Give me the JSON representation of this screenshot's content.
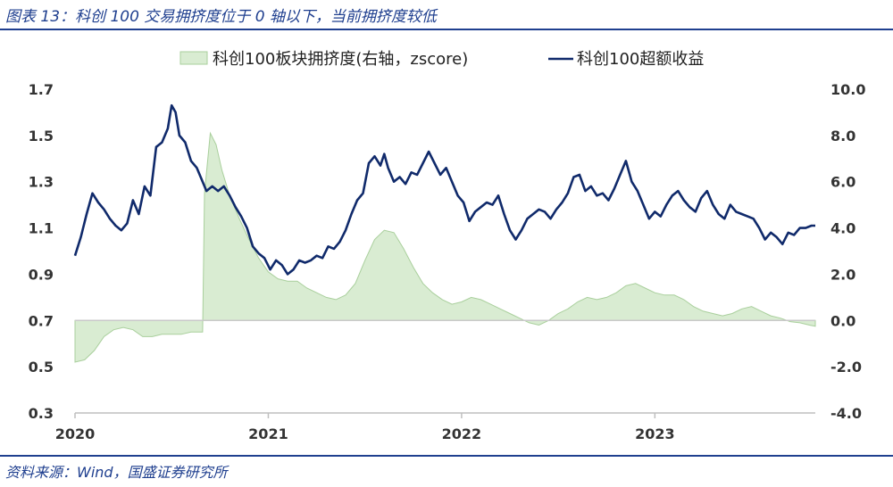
{
  "title": "图表 13：科创 100 交易拥挤度位于 0 轴以下，当前拥挤度较低",
  "source": "资料来源：Wind，国盛证券研究所",
  "colors": {
    "line": "#102a6b",
    "area_fill": "#d9ecd2",
    "area_stroke": "#a9cf9c",
    "title": "#1f3f8f",
    "baseline": "#c9c9c9"
  },
  "chart_data": {
    "type": "line",
    "legend": [
      {
        "label": "科创100板块拥挤度(右轴，zscore)",
        "kind": "area"
      },
      {
        "label": "科创100超额收益",
        "kind": "line"
      }
    ],
    "x_ticks": [
      {
        "label": "2020",
        "t": 2020.0
      },
      {
        "label": "2021",
        "t": 2021.0
      },
      {
        "label": "2022",
        "t": 2022.0
      },
      {
        "label": "2023",
        "t": 2023.0
      }
    ],
    "y_left": {
      "ticks": [
        "1.7",
        "1.5",
        "1.3",
        "1.1",
        "0.9",
        "0.7",
        "0.5",
        "0.3"
      ],
      "range": [
        0.3,
        1.7
      ]
    },
    "y_right": {
      "ticks": [
        "10.0",
        "8.0",
        "6.0",
        "4.0",
        "2.0",
        "0.0",
        "-2.0",
        "-4.0"
      ],
      "range": [
        -4.0,
        10.0
      ]
    },
    "x_range": [
      2020.0,
      2023.83
    ],
    "series": [
      {
        "name": "科创100超额收益",
        "axis": "left",
        "points": [
          [
            2020.0,
            0.98
          ],
          [
            2020.03,
            1.06
          ],
          [
            2020.06,
            1.16
          ],
          [
            2020.09,
            1.25
          ],
          [
            2020.12,
            1.21
          ],
          [
            2020.15,
            1.18
          ],
          [
            2020.18,
            1.14
          ],
          [
            2020.21,
            1.11
          ],
          [
            2020.24,
            1.09
          ],
          [
            2020.27,
            1.12
          ],
          [
            2020.3,
            1.22
          ],
          [
            2020.33,
            1.16
          ],
          [
            2020.36,
            1.28
          ],
          [
            2020.39,
            1.24
          ],
          [
            2020.42,
            1.45
          ],
          [
            2020.45,
            1.47
          ],
          [
            2020.48,
            1.53
          ],
          [
            2020.5,
            1.63
          ],
          [
            2020.52,
            1.6
          ],
          [
            2020.54,
            1.5
          ],
          [
            2020.57,
            1.47
          ],
          [
            2020.6,
            1.39
          ],
          [
            2020.63,
            1.36
          ],
          [
            2020.65,
            1.32
          ],
          [
            2020.68,
            1.26
          ],
          [
            2020.71,
            1.28
          ],
          [
            2020.74,
            1.26
          ],
          [
            2020.77,
            1.28
          ],
          [
            2020.8,
            1.24
          ],
          [
            2020.83,
            1.19
          ],
          [
            2020.86,
            1.15
          ],
          [
            2020.89,
            1.1
          ],
          [
            2020.92,
            1.02
          ],
          [
            2020.95,
            0.99
          ],
          [
            2020.98,
            0.97
          ],
          [
            2021.01,
            0.92
          ],
          [
            2021.04,
            0.96
          ],
          [
            2021.07,
            0.94
          ],
          [
            2021.1,
            0.9
          ],
          [
            2021.13,
            0.92
          ],
          [
            2021.16,
            0.96
          ],
          [
            2021.19,
            0.95
          ],
          [
            2021.22,
            0.96
          ],
          [
            2021.25,
            0.98
          ],
          [
            2021.28,
            0.97
          ],
          [
            2021.31,
            1.02
          ],
          [
            2021.34,
            1.01
          ],
          [
            2021.37,
            1.04
          ],
          [
            2021.4,
            1.09
          ],
          [
            2021.43,
            1.16
          ],
          [
            2021.46,
            1.22
          ],
          [
            2021.49,
            1.25
          ],
          [
            2021.52,
            1.38
          ],
          [
            2021.55,
            1.41
          ],
          [
            2021.58,
            1.37
          ],
          [
            2021.6,
            1.42
          ],
          [
            2021.62,
            1.36
          ],
          [
            2021.65,
            1.3
          ],
          [
            2021.68,
            1.32
          ],
          [
            2021.71,
            1.29
          ],
          [
            2021.74,
            1.34
          ],
          [
            2021.77,
            1.33
          ],
          [
            2021.8,
            1.38
          ],
          [
            2021.83,
            1.43
          ],
          [
            2021.86,
            1.38
          ],
          [
            2021.89,
            1.33
          ],
          [
            2021.92,
            1.36
          ],
          [
            2021.95,
            1.3
          ],
          [
            2021.98,
            1.24
          ],
          [
            2022.01,
            1.21
          ],
          [
            2022.04,
            1.13
          ],
          [
            2022.07,
            1.17
          ],
          [
            2022.1,
            1.19
          ],
          [
            2022.13,
            1.21
          ],
          [
            2022.16,
            1.2
          ],
          [
            2022.19,
            1.24
          ],
          [
            2022.22,
            1.16
          ],
          [
            2022.25,
            1.09
          ],
          [
            2022.28,
            1.05
          ],
          [
            2022.31,
            1.09
          ],
          [
            2022.34,
            1.14
          ],
          [
            2022.37,
            1.16
          ],
          [
            2022.4,
            1.18
          ],
          [
            2022.43,
            1.17
          ],
          [
            2022.46,
            1.14
          ],
          [
            2022.49,
            1.18
          ],
          [
            2022.52,
            1.21
          ],
          [
            2022.55,
            1.25
          ],
          [
            2022.58,
            1.32
          ],
          [
            2022.61,
            1.33
          ],
          [
            2022.64,
            1.26
          ],
          [
            2022.67,
            1.28
          ],
          [
            2022.7,
            1.24
          ],
          [
            2022.73,
            1.25
          ],
          [
            2022.76,
            1.22
          ],
          [
            2022.79,
            1.27
          ],
          [
            2022.82,
            1.33
          ],
          [
            2022.85,
            1.39
          ],
          [
            2022.88,
            1.3
          ],
          [
            2022.91,
            1.26
          ],
          [
            2022.94,
            1.2
          ],
          [
            2022.97,
            1.14
          ],
          [
            2023.0,
            1.17
          ],
          [
            2023.03,
            1.15
          ],
          [
            2023.06,
            1.2
          ],
          [
            2023.09,
            1.24
          ],
          [
            2023.12,
            1.26
          ],
          [
            2023.15,
            1.22
          ],
          [
            2023.18,
            1.19
          ],
          [
            2023.21,
            1.17
          ],
          [
            2023.24,
            1.23
          ],
          [
            2023.27,
            1.26
          ],
          [
            2023.3,
            1.2
          ],
          [
            2023.33,
            1.16
          ],
          [
            2023.36,
            1.14
          ],
          [
            2023.39,
            1.2
          ],
          [
            2023.42,
            1.17
          ],
          [
            2023.45,
            1.16
          ],
          [
            2023.48,
            1.15
          ],
          [
            2023.51,
            1.14
          ],
          [
            2023.54,
            1.1
          ],
          [
            2023.57,
            1.05
          ],
          [
            2023.6,
            1.08
          ],
          [
            2023.63,
            1.06
          ],
          [
            2023.66,
            1.03
          ],
          [
            2023.69,
            1.08
          ],
          [
            2023.72,
            1.07
          ],
          [
            2023.75,
            1.1
          ],
          [
            2023.78,
            1.1
          ],
          [
            2023.81,
            1.11
          ],
          [
            2023.83,
            1.11
          ]
        ]
      },
      {
        "name": "科创100板块拥挤度(右轴，zscore)",
        "axis": "right",
        "points": [
          [
            2020.0,
            -1.8
          ],
          [
            2020.05,
            -1.7
          ],
          [
            2020.1,
            -1.3
          ],
          [
            2020.15,
            -0.7
          ],
          [
            2020.2,
            -0.4
          ],
          [
            2020.25,
            -0.3
          ],
          [
            2020.3,
            -0.4
          ],
          [
            2020.35,
            -0.7
          ],
          [
            2020.4,
            -0.7
          ],
          [
            2020.45,
            -0.6
          ],
          [
            2020.5,
            -0.6
          ],
          [
            2020.55,
            -0.6
          ],
          [
            2020.6,
            -0.5
          ],
          [
            2020.66,
            -0.5
          ],
          [
            2020.67,
            5.5
          ],
          [
            2020.7,
            8.1
          ],
          [
            2020.73,
            7.6
          ],
          [
            2020.76,
            6.5
          ],
          [
            2020.8,
            5.4
          ],
          [
            2020.85,
            4.4
          ],
          [
            2020.9,
            3.5
          ],
          [
            2020.95,
            2.7
          ],
          [
            2021.0,
            2.1
          ],
          [
            2021.05,
            1.8
          ],
          [
            2021.1,
            1.7
          ],
          [
            2021.15,
            1.7
          ],
          [
            2021.2,
            1.4
          ],
          [
            2021.25,
            1.2
          ],
          [
            2021.3,
            1.0
          ],
          [
            2021.35,
            0.9
          ],
          [
            2021.4,
            1.1
          ],
          [
            2021.45,
            1.6
          ],
          [
            2021.5,
            2.6
          ],
          [
            2021.55,
            3.5
          ],
          [
            2021.6,
            3.9
          ],
          [
            2021.65,
            3.8
          ],
          [
            2021.7,
            3.1
          ],
          [
            2021.75,
            2.3
          ],
          [
            2021.8,
            1.6
          ],
          [
            2021.85,
            1.2
          ],
          [
            2021.9,
            0.9
          ],
          [
            2021.95,
            0.7
          ],
          [
            2022.0,
            0.8
          ],
          [
            2022.05,
            1.0
          ],
          [
            2022.1,
            0.9
          ],
          [
            2022.15,
            0.7
          ],
          [
            2022.2,
            0.5
          ],
          [
            2022.25,
            0.3
          ],
          [
            2022.3,
            0.1
          ],
          [
            2022.35,
            -0.1
          ],
          [
            2022.4,
            -0.2
          ],
          [
            2022.45,
            0.0
          ],
          [
            2022.5,
            0.3
          ],
          [
            2022.55,
            0.5
          ],
          [
            2022.6,
            0.8
          ],
          [
            2022.65,
            1.0
          ],
          [
            2022.7,
            0.9
          ],
          [
            2022.75,
            1.0
          ],
          [
            2022.8,
            1.2
          ],
          [
            2022.85,
            1.5
          ],
          [
            2022.9,
            1.6
          ],
          [
            2022.95,
            1.4
          ],
          [
            2023.0,
            1.2
          ],
          [
            2023.05,
            1.1
          ],
          [
            2023.1,
            1.1
          ],
          [
            2023.15,
            0.9
          ],
          [
            2023.2,
            0.6
          ],
          [
            2023.25,
            0.4
          ],
          [
            2023.3,
            0.3
          ],
          [
            2023.35,
            0.2
          ],
          [
            2023.4,
            0.3
          ],
          [
            2023.45,
            0.5
          ],
          [
            2023.5,
            0.6
          ],
          [
            2023.55,
            0.4
          ],
          [
            2023.6,
            0.2
          ],
          [
            2023.65,
            0.1
          ],
          [
            2023.7,
            -0.05
          ],
          [
            2023.75,
            -0.1
          ],
          [
            2023.8,
            -0.2
          ],
          [
            2023.83,
            -0.25
          ]
        ]
      }
    ]
  }
}
